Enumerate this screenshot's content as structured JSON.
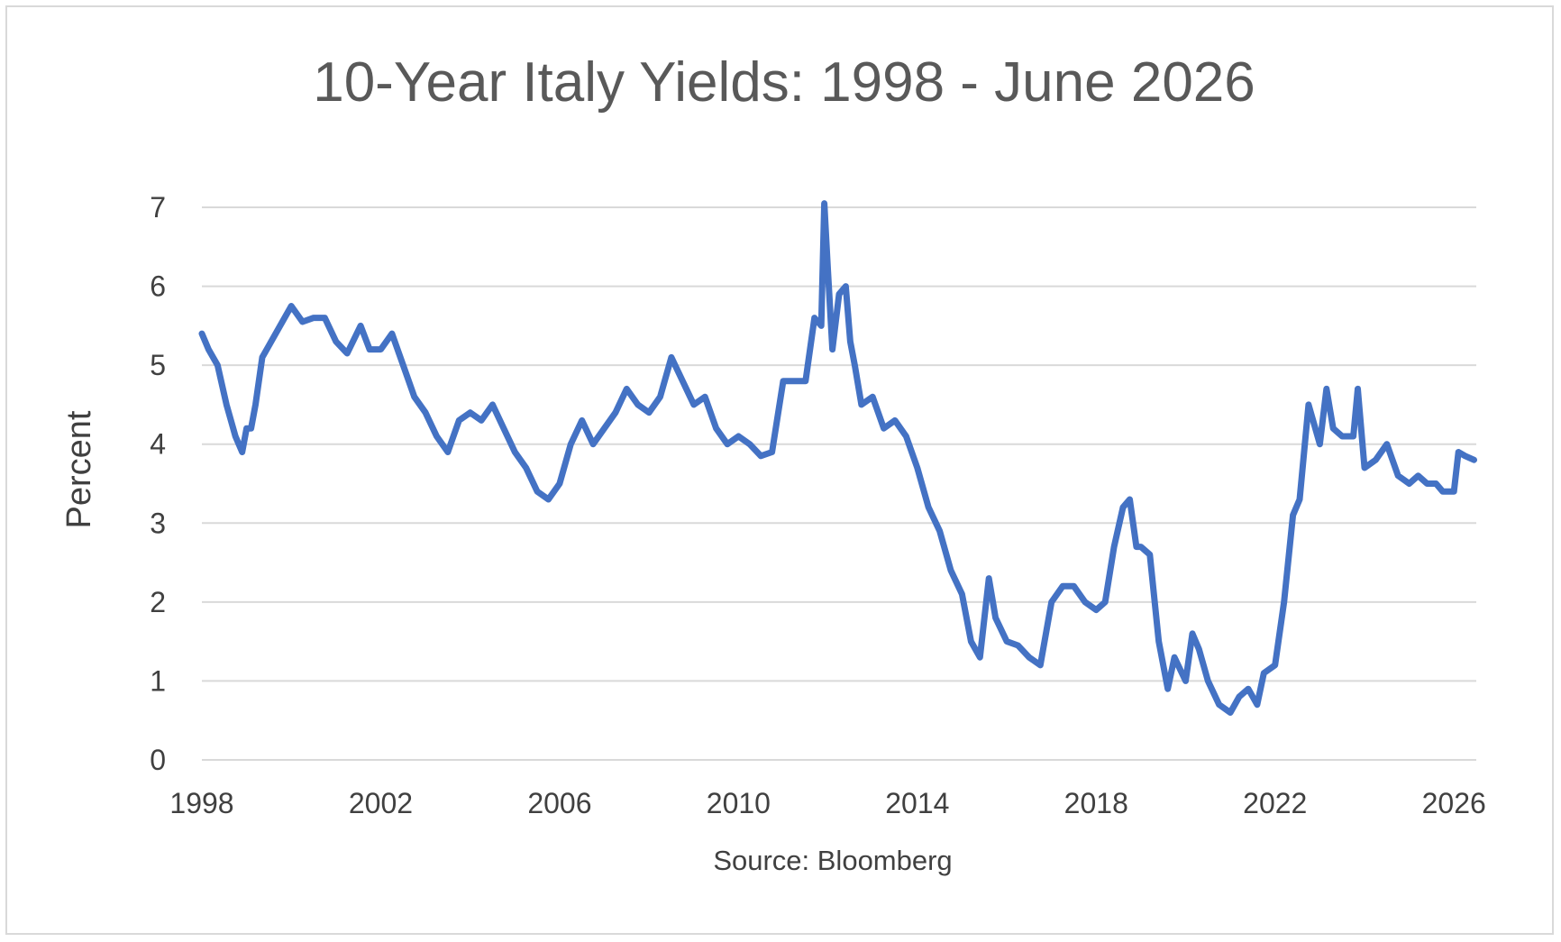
{
  "chart_data": {
    "type": "line",
    "title": "10-Year Italy Yields: 1998 - June 2026",
    "xlabel": "Source: Bloomberg",
    "ylabel": "Percent",
    "ylim": [
      0,
      7
    ],
    "yticks": [
      "0",
      "1",
      "2",
      "3",
      "4",
      "5",
      "6",
      "7"
    ],
    "xticks": [
      "1998",
      "2002",
      "2006",
      "2010",
      "2014",
      "2018",
      "2022",
      "2026"
    ],
    "xlim": [
      1998.0,
      2026.5
    ],
    "grid": true,
    "legend": "none",
    "series": [
      {
        "color": "#4472C4",
        "x": [
          1998.0,
          1998.15,
          1998.35,
          1998.55,
          1998.75,
          1998.9,
          1999.0,
          1999.1,
          1999.2,
          1999.35,
          1999.55,
          1999.75,
          2000.0,
          2000.25,
          2000.5,
          2000.75,
          2001.0,
          2001.25,
          2001.55,
          2001.75,
          2002.0,
          2002.25,
          2002.5,
          2002.75,
          2003.0,
          2003.25,
          2003.5,
          2003.75,
          2004.0,
          2004.25,
          2004.5,
          2004.75,
          2005.0,
          2005.25,
          2005.5,
          2005.75,
          2006.0,
          2006.25,
          2006.5,
          2006.75,
          2007.0,
          2007.25,
          2007.5,
          2007.75,
          2008.0,
          2008.25,
          2008.5,
          2008.75,
          2009.0,
          2009.25,
          2009.5,
          2009.75,
          2010.0,
          2010.25,
          2010.5,
          2010.75,
          2011.0,
          2011.25,
          2011.5,
          2011.7,
          2011.85,
          2011.92,
          2012.0,
          2012.1,
          2012.25,
          2012.4,
          2012.5,
          2012.6,
          2012.75,
          2013.0,
          2013.25,
          2013.5,
          2013.75,
          2014.0,
          2014.25,
          2014.5,
          2014.75,
          2015.0,
          2015.2,
          2015.4,
          2015.6,
          2015.75,
          2016.0,
          2016.25,
          2016.5,
          2016.75,
          2017.0,
          2017.25,
          2017.5,
          2017.75,
          2018.0,
          2018.2,
          2018.4,
          2018.6,
          2018.75,
          2018.9,
          2019.0,
          2019.2,
          2019.4,
          2019.6,
          2019.75,
          2020.0,
          2020.15,
          2020.3,
          2020.5,
          2020.75,
          2021.0,
          2021.2,
          2021.4,
          2021.6,
          2021.75,
          2022.0,
          2022.2,
          2022.4,
          2022.55,
          2022.75,
          2023.0,
          2023.15,
          2023.3,
          2023.5,
          2023.75,
          2023.85,
          2024.0,
          2024.25,
          2024.5,
          2024.75,
          2025.0,
          2025.2,
          2025.4,
          2025.6,
          2025.75,
          2026.0,
          2026.1,
          2026.25,
          2026.45
        ],
        "values": [
          5.4,
          5.2,
          5.0,
          4.5,
          4.1,
          3.9,
          4.2,
          4.2,
          4.5,
          5.1,
          5.3,
          5.5,
          5.75,
          5.55,
          5.6,
          5.6,
          5.3,
          5.15,
          5.5,
          5.2,
          5.2,
          5.4,
          5.0,
          4.6,
          4.4,
          4.1,
          3.9,
          4.3,
          4.4,
          4.3,
          4.5,
          4.2,
          3.9,
          3.7,
          3.4,
          3.3,
          3.5,
          4.0,
          4.3,
          4.0,
          4.2,
          4.4,
          4.7,
          4.5,
          4.4,
          4.6,
          5.1,
          4.8,
          4.5,
          4.6,
          4.2,
          4.0,
          4.1,
          4.0,
          3.85,
          3.9,
          4.8,
          4.8,
          4.8,
          5.6,
          5.5,
          7.05,
          6.2,
          5.2,
          5.9,
          6.0,
          5.3,
          5.0,
          4.5,
          4.6,
          4.2,
          4.3,
          4.1,
          3.7,
          3.2,
          2.9,
          2.4,
          2.1,
          1.5,
          1.3,
          2.3,
          1.8,
          1.5,
          1.45,
          1.3,
          1.2,
          2.0,
          2.2,
          2.2,
          2.0,
          1.9,
          2.0,
          2.7,
          3.2,
          3.3,
          2.7,
          2.7,
          2.6,
          1.5,
          0.9,
          1.3,
          1.0,
          1.6,
          1.4,
          1.0,
          0.7,
          0.6,
          0.8,
          0.9,
          0.7,
          1.1,
          1.2,
          2.0,
          3.1,
          3.3,
          4.5,
          4.0,
          4.7,
          4.2,
          4.1,
          4.1,
          4.7,
          3.7,
          3.8,
          4.0,
          3.6,
          3.5,
          3.6,
          3.5,
          3.5,
          3.4,
          3.4,
          3.9,
          3.85,
          3.8
        ]
      }
    ]
  }
}
